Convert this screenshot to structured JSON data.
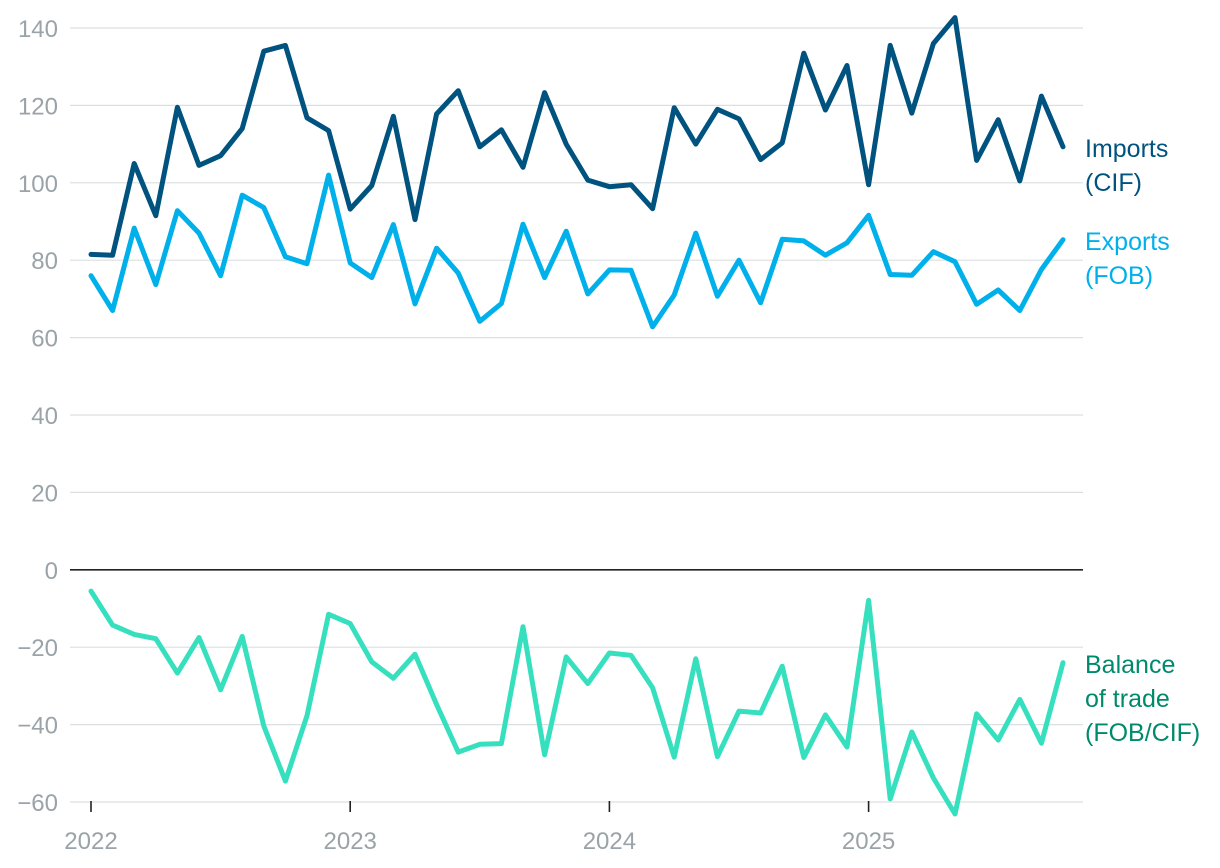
{
  "chart_data": {
    "type": "line",
    "title": "",
    "xlabel": "",
    "ylabel": "",
    "ylim": [
      -60,
      140
    ],
    "yticks": [
      -60,
      -40,
      -20,
      0,
      20,
      40,
      60,
      80,
      100,
      120,
      140
    ],
    "ytick_labels": [
      "−60",
      "−40",
      "−20",
      "0",
      "20",
      "40",
      "60",
      "80",
      "100",
      "120",
      "140"
    ],
    "x_tick_labels": [
      "2022",
      "2023",
      "2024",
      "2025"
    ],
    "x_start": "2022-01",
    "x_end": "2025-10",
    "x": [
      "2022-01",
      "2022-02",
      "2022-03",
      "2022-04",
      "2022-05",
      "2022-06",
      "2022-07",
      "2022-08",
      "2022-09",
      "2022-10",
      "2022-11",
      "2022-12",
      "2023-01",
      "2023-02",
      "2023-03",
      "2023-04",
      "2023-05",
      "2023-06",
      "2023-07",
      "2023-08",
      "2023-09",
      "2023-10",
      "2023-11",
      "2023-12",
      "2024-01",
      "2024-02",
      "2024-03",
      "2024-04",
      "2024-05",
      "2024-06",
      "2024-07",
      "2024-08",
      "2024-09",
      "2024-10",
      "2024-11",
      "2024-12",
      "2025-01",
      "2025-02",
      "2025-03",
      "2025-04",
      "2025-05",
      "2025-06",
      "2025-07",
      "2025-08",
      "2025-09",
      "2025-10"
    ],
    "grid": true,
    "legend": "inline-right",
    "series": [
      {
        "name": "Imports (CIF)",
        "label_lines": [
          "Imports",
          "(CIF)"
        ],
        "color": "#00527f",
        "values": [
          81.5,
          81.3,
          105.0,
          91.5,
          119.5,
          104.5,
          107.0,
          114.0,
          134.0,
          135.5,
          116.8,
          113.5,
          93.2,
          99.3,
          117.2,
          90.5,
          117.8,
          123.8,
          109.3,
          113.7,
          104.0,
          123.3,
          110.0,
          100.7,
          99.0,
          99.5,
          93.3,
          119.4,
          110.0,
          119.0,
          116.5,
          106.0,
          110.3,
          133.5,
          118.8,
          130.3,
          99.5,
          135.5,
          118.0,
          136.0,
          142.7,
          105.8,
          116.3,
          100.5,
          122.4,
          109.3
        ]
      },
      {
        "name": "Exports (FOB)",
        "label_lines": [
          "Exports",
          "(FOB)"
        ],
        "color": "#00b0ea",
        "values": [
          76.0,
          67.0,
          88.3,
          73.7,
          92.8,
          87.0,
          76.0,
          96.8,
          93.6,
          80.9,
          79.1,
          102.0,
          79.3,
          75.5,
          89.2,
          68.7,
          83.1,
          76.7,
          64.2,
          68.8,
          89.3,
          75.5,
          87.5,
          71.3,
          77.5,
          77.4,
          62.8,
          71.0,
          87.0,
          70.7,
          80.0,
          69.0,
          85.4,
          85.0,
          81.3,
          84.5,
          91.6,
          76.3,
          76.1,
          82.2,
          79.6,
          68.6,
          72.3,
          67.0,
          77.6,
          85.3
        ]
      },
      {
        "name": "Balance of trade (FOB/CIF)",
        "label_lines": [
          "Balance",
          "of trade",
          "(FOB/CIF)"
        ],
        "color": "#36e0be",
        "label_color": "#008a6c",
        "values": [
          -5.5,
          -14.3,
          -16.7,
          -17.8,
          -26.7,
          -17.5,
          -31.0,
          -17.2,
          -40.4,
          -54.6,
          -37.7,
          -11.5,
          -13.9,
          -23.8,
          -28.0,
          -21.8,
          -34.8,
          -47.1,
          -45.1,
          -44.9,
          -14.7,
          -47.8,
          -22.5,
          -29.4,
          -21.5,
          -22.1,
          -30.5,
          -48.4,
          -23.0,
          -48.3,
          -36.5,
          -37.0,
          -24.9,
          -48.5,
          -37.5,
          -45.8,
          -7.9,
          -59.2,
          -41.9,
          -53.8,
          -63.1,
          -37.2,
          -44.0,
          -33.5,
          -44.8,
          -24.0
        ]
      }
    ]
  }
}
